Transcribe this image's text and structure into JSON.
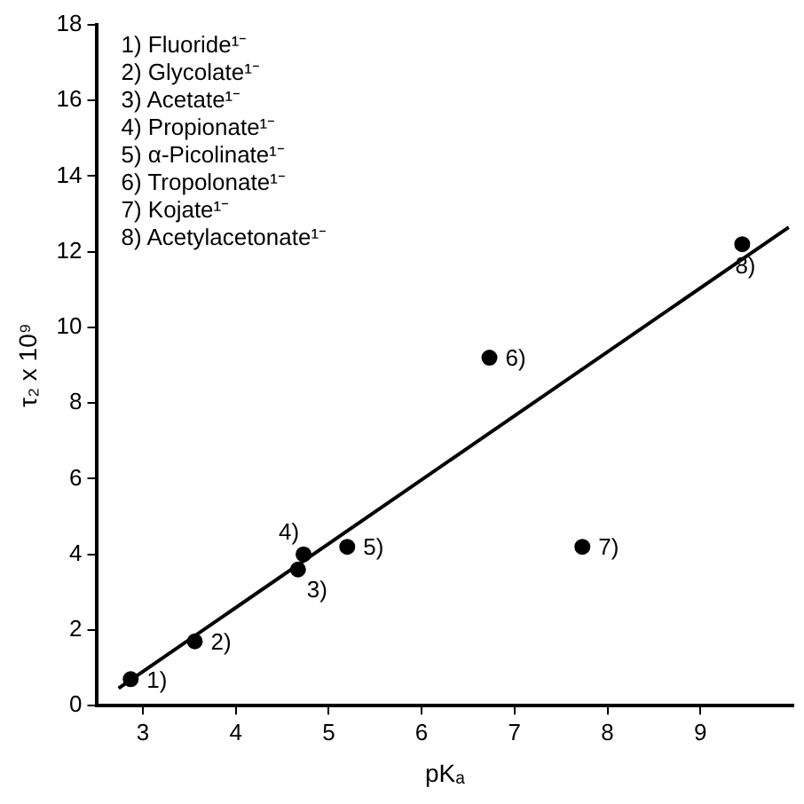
{
  "chart_data": {
    "type": "scatter",
    "xlabel": "pKₐ",
    "ylabel": "τ₂ x 10⁹",
    "xlim": [
      2.5,
      10
    ],
    "ylim": [
      0,
      18
    ],
    "xticks": [
      3,
      4,
      5,
      6,
      7,
      8,
      9
    ],
    "yticks": [
      0,
      2,
      4,
      6,
      8,
      10,
      12,
      14,
      16,
      18
    ],
    "grid": false,
    "legend": false,
    "marker": "circle",
    "series": [
      {
        "color": "#000000",
        "x": [
          2.87,
          3.56,
          4.67,
          4.73,
          5.2,
          6.73,
          7.73,
          9.45
        ],
        "values": [
          0.7,
          1.7,
          3.6,
          4.0,
          4.2,
          9.2,
          4.2,
          12.2
        ]
      },
      {
        "type": "line",
        "color": "#000000",
        "marker": "none",
        "x": [
          2.74,
          9.95
        ],
        "values": [
          0.46,
          12.65
        ]
      }
    ],
    "annotations": [
      "1) Fluoride¹⁻",
      "2) Glycolate¹⁻",
      "3) Acetate¹⁻",
      "4) Propionate¹⁻",
      "5) α-Picolinate¹⁻",
      "6) Tropolonate¹⁻",
      "7) Kojate¹⁻",
      "8) Acetylacetonate¹⁻",
      {
        "text": "1)",
        "x": 2.87,
        "y": 0.7
      },
      {
        "text": "2)",
        "x": 3.56,
        "y": 1.7
      },
      {
        "text": "3)",
        "x": 4.67,
        "y": 3.6
      },
      {
        "text": "4)",
        "x": 4.73,
        "y": 4.0
      },
      {
        "text": "5)",
        "x": 5.2,
        "y": 4.2
      },
      {
        "text": "6)",
        "x": 6.73,
        "y": 9.2
      },
      {
        "text": "7)",
        "x": 7.73,
        "y": 4.2
      },
      {
        "text": "8)",
        "x": 9.45,
        "y": 12.2
      }
    ]
  }
}
